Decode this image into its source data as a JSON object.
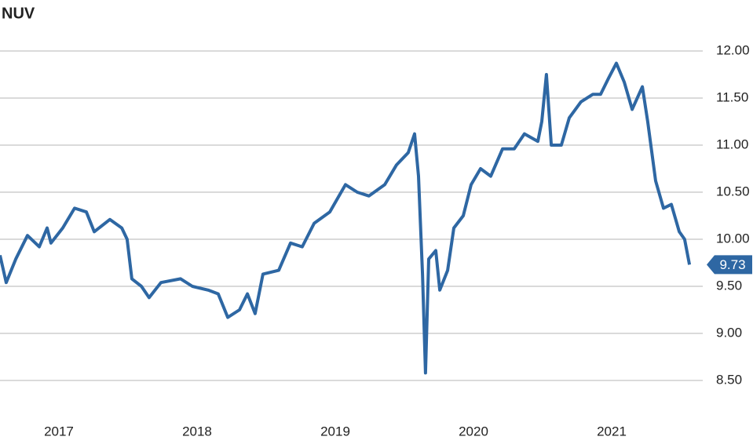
{
  "chart_data": {
    "type": "line",
    "title": "NUV",
    "x": [
      2017.074,
      2017.119,
      2017.188,
      2017.273,
      2017.358,
      2017.415,
      2017.443,
      2017.528,
      2017.614,
      2017.699,
      2017.756,
      2017.869,
      2017.955,
      2017.994,
      2018.028,
      2018.097,
      2018.153,
      2018.239,
      2018.381,
      2018.466,
      2018.58,
      2018.653,
      2018.722,
      2018.807,
      2018.864,
      2018.92,
      2018.977,
      2019.091,
      2019.176,
      2019.261,
      2019.347,
      2019.46,
      2019.574,
      2019.659,
      2019.744,
      2019.858,
      2019.943,
      2020.028,
      2020.074,
      2020.102,
      2020.131,
      2020.153,
      2020.176,
      2020.227,
      2020.256,
      2020.313,
      2020.358,
      2020.426,
      2020.483,
      2020.551,
      2020.625,
      2020.71,
      2020.795,
      2020.869,
      2020.966,
      2020.994,
      2021.028,
      2021.063,
      2021.136,
      2021.193,
      2021.278,
      2021.364,
      2021.42,
      2021.477,
      2021.534,
      2021.591,
      2021.648,
      2021.722,
      2021.761,
      2021.818,
      2021.875,
      2021.932,
      2021.989,
      2022.028,
      2022.063
    ],
    "series": [
      {
        "name": "NUV",
        "color": "#2e67a3",
        "values": [
          9.83,
          9.54,
          9.79,
          10.04,
          9.92,
          10.12,
          9.96,
          10.12,
          10.33,
          10.29,
          10.08,
          10.21,
          10.12,
          10.0,
          9.58,
          9.5,
          9.38,
          9.54,
          9.58,
          9.5,
          9.46,
          9.42,
          9.17,
          9.25,
          9.42,
          9.21,
          9.63,
          9.67,
          9.96,
          9.92,
          10.17,
          10.29,
          10.58,
          10.5,
          10.46,
          10.58,
          10.79,
          10.92,
          11.12,
          10.67,
          9.63,
          8.58,
          9.79,
          9.88,
          9.46,
          9.67,
          10.12,
          10.25,
          10.58,
          10.75,
          10.67,
          10.96,
          10.96,
          11.12,
          11.04,
          11.25,
          11.75,
          11.0,
          11.0,
          11.29,
          11.46,
          11.54,
          11.54,
          11.71,
          11.87,
          11.67,
          11.38,
          11.62,
          11.25,
          10.62,
          10.33,
          10.37,
          10.08,
          10.0,
          9.73
        ]
      }
    ],
    "xlim": [
      2017.074,
      2022.159
    ],
    "xticks": [
      {
        "value": 2017.5,
        "label": "2017"
      },
      {
        "value": 2018.5,
        "label": "2018"
      },
      {
        "value": 2019.5,
        "label": "2019"
      },
      {
        "value": 2020.5,
        "label": "2020"
      },
      {
        "value": 2021.5,
        "label": "2021"
      }
    ],
    "ylim": [
      8.125,
      12.2083
    ],
    "yticks": [
      {
        "value": 8.5,
        "label": "8.50"
      },
      {
        "value": 9,
        "label": "9.00"
      },
      {
        "value": 9.5,
        "label": "9.50"
      },
      {
        "value": 10,
        "label": "10.00"
      },
      {
        "value": 10.5,
        "label": "10.50"
      },
      {
        "value": 11,
        "label": "11.00"
      },
      {
        "value": 11.5,
        "label": "11.50"
      },
      {
        "value": 12,
        "label": "12.00"
      }
    ],
    "grid": true
  }
}
